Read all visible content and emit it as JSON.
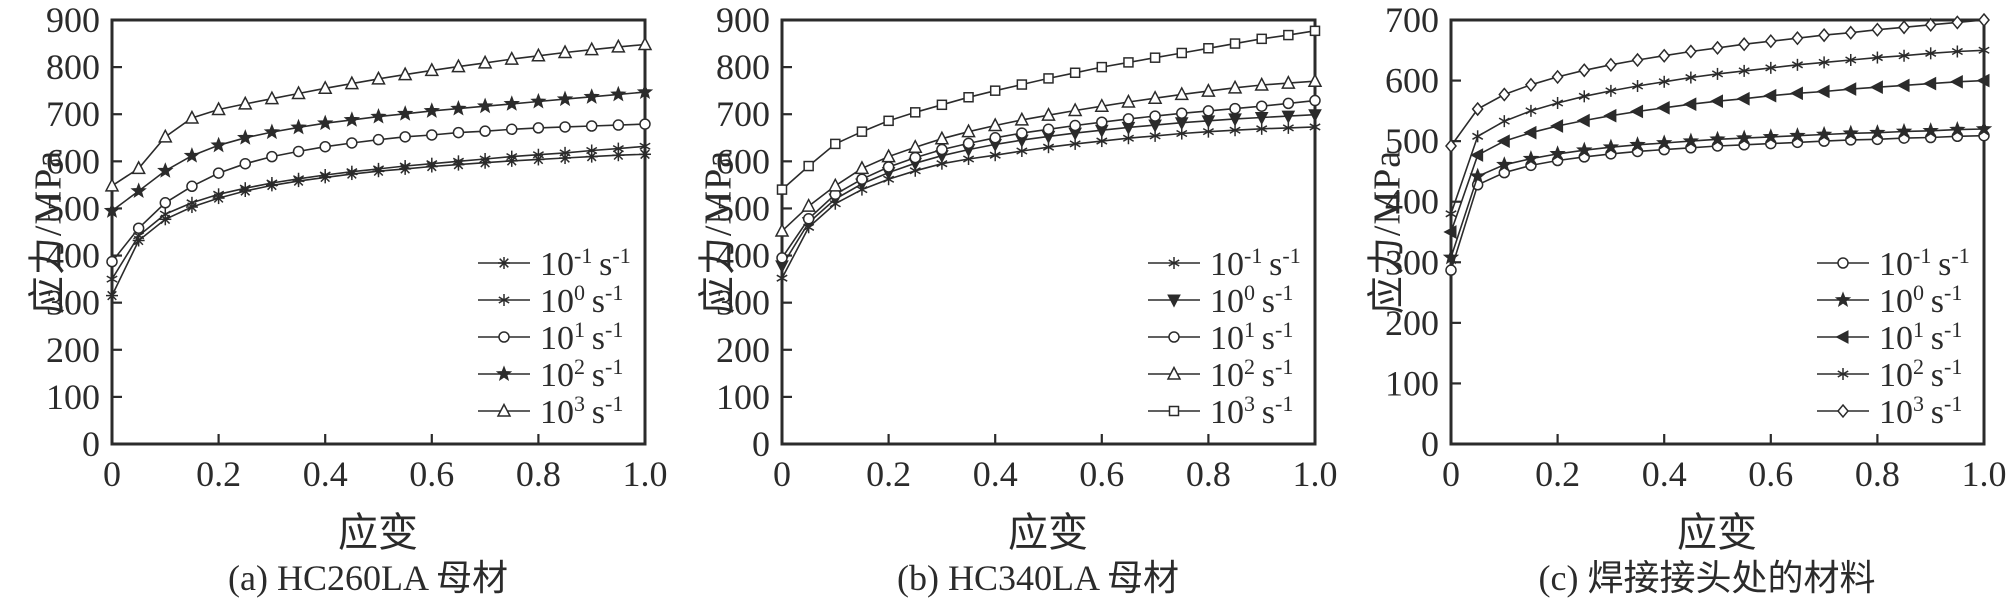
{
  "style": {
    "ink": "#2b2b2b",
    "background": "#ffffff",
    "marker_fill_open": "#ffffff"
  },
  "chart_data": [
    {
      "id": "a",
      "type": "line",
      "caption": "(a) HC260LA 母材",
      "xlabel": "应变",
      "ylabel": "应力/MPa",
      "xlim": [
        0,
        1.0
      ],
      "ylim": [
        0,
        900
      ],
      "ytick_step": 100,
      "ytick_labels": [
        "0",
        "100",
        "200",
        "300",
        "400",
        "500",
        "600",
        "700",
        "800",
        "900"
      ],
      "xticks": [
        0,
        0.2,
        0.4,
        0.6,
        0.8,
        1.0
      ],
      "xtick_labels": [
        "0",
        "0.2",
        "0.4",
        "0.6",
        "0.8",
        "1.0"
      ],
      "legend_position": "lower right",
      "grid": false,
      "x": [
        0,
        0.05,
        0.1,
        0.15,
        0.2,
        0.25,
        0.3,
        0.35,
        0.4,
        0.45,
        0.5,
        0.55,
        0.6,
        0.65,
        0.7,
        0.75,
        0.8,
        0.85,
        0.9,
        0.95,
        1.0
      ],
      "series": [
        {
          "label": "10^-1 s^-1",
          "exp": "-1",
          "marker": "asterisk8",
          "values": [
            315,
            432,
            477,
            503,
            522,
            537,
            549,
            558,
            566,
            573,
            579,
            584,
            589,
            593,
            597,
            601,
            604,
            607,
            610,
            613,
            615
          ]
        },
        {
          "label": "10^0 s^-1",
          "exp": "0",
          "marker": "asterisk6",
          "values": [
            350,
            442,
            488,
            512,
            530,
            543,
            554,
            563,
            571,
            578,
            584,
            590,
            595,
            600,
            605,
            610,
            614,
            618,
            623,
            627,
            632
          ]
        },
        {
          "label": "10^1 s^-1",
          "exp": "1",
          "marker": "circle",
          "values": [
            387,
            458,
            512,
            547,
            575,
            595,
            610,
            621,
            631,
            639,
            646,
            652,
            656,
            661,
            664,
            668,
            671,
            673,
            675,
            677,
            679
          ]
        },
        {
          "label": "10^2 s^-1",
          "exp": "2",
          "marker": "star",
          "values": [
            495,
            537,
            580,
            612,
            634,
            650,
            662,
            672,
            681,
            688,
            695,
            701,
            707,
            712,
            717,
            722,
            727,
            732,
            737,
            742,
            747
          ]
        },
        {
          "label": "10^3 s^-1",
          "exp": "3",
          "marker": "triangle-up",
          "values": [
            548,
            585,
            652,
            692,
            710,
            722,
            733,
            744,
            755,
            765,
            775,
            784,
            793,
            801,
            809,
            817,
            824,
            831,
            837,
            843,
            848
          ]
        }
      ]
    },
    {
      "id": "b",
      "type": "line",
      "caption": "(b) HC340LA 母材",
      "xlabel": "应变",
      "ylabel": "应力/MPa",
      "xlim": [
        0,
        1.0
      ],
      "ylim": [
        0,
        900
      ],
      "ytick_step": 100,
      "ytick_labels": [
        "0",
        "100",
        "200",
        "300",
        "400",
        "500",
        "600",
        "700",
        "800",
        "900"
      ],
      "xticks": [
        0,
        0.2,
        0.4,
        0.6,
        0.8,
        1.0
      ],
      "xtick_labels": [
        "0",
        "0.2",
        "0.4",
        "0.6",
        "0.8",
        "1.0"
      ],
      "legend_position": "lower right",
      "grid": false,
      "x": [
        0,
        0.05,
        0.1,
        0.15,
        0.2,
        0.25,
        0.3,
        0.35,
        0.4,
        0.45,
        0.5,
        0.55,
        0.6,
        0.65,
        0.7,
        0.75,
        0.8,
        0.85,
        0.9,
        0.95,
        1.0
      ],
      "series": [
        {
          "label": "10^-1 s^-1",
          "exp": "-1",
          "marker": "asterisk6",
          "values": [
            352,
            460,
            510,
            540,
            562,
            580,
            595,
            605,
            613,
            622,
            630,
            637,
            643,
            649,
            654,
            659,
            663,
            666,
            669,
            671,
            673
          ]
        },
        {
          "label": "10^0 s^-1",
          "exp": "0",
          "marker": "triangle-down-filled",
          "values": [
            378,
            470,
            520,
            552,
            576,
            596,
            612,
            625,
            636,
            645,
            653,
            660,
            666,
            672,
            677,
            682,
            686,
            690,
            693,
            696,
            699
          ]
        },
        {
          "label": "10^1 s^-1",
          "exp": "1",
          "marker": "circle",
          "values": [
            395,
            478,
            530,
            562,
            588,
            608,
            625,
            638,
            650,
            660,
            668,
            676,
            683,
            690,
            696,
            702,
            707,
            712,
            717,
            723,
            729
          ]
        },
        {
          "label": "10^2 s^-1",
          "exp": "2",
          "marker": "triangle-up",
          "values": [
            452,
            505,
            548,
            585,
            610,
            630,
            648,
            663,
            676,
            688,
            698,
            708,
            717,
            726,
            734,
            742,
            749,
            756,
            762,
            766,
            770
          ]
        },
        {
          "label": "10^3 s^-1",
          "exp": "3",
          "marker": "square",
          "values": [
            540,
            590,
            637,
            663,
            686,
            704,
            720,
            736,
            750,
            763,
            776,
            788,
            800,
            810,
            820,
            830,
            840,
            850,
            860,
            868,
            877
          ]
        }
      ]
    },
    {
      "id": "c",
      "type": "line",
      "caption": "(c) 焊接接头处的材料",
      "xlabel": "应变",
      "ylabel": "应力/MPa",
      "xlim": [
        0,
        1.0
      ],
      "ylim": [
        0,
        700
      ],
      "ytick_step": 100,
      "ytick_labels": [
        "0",
        "100",
        "200",
        "300",
        "400",
        "500",
        "600",
        "700"
      ],
      "xticks": [
        0,
        0.2,
        0.4,
        0.6,
        0.8,
        1.0
      ],
      "xtick_labels": [
        "0",
        "0.2",
        "0.4",
        "0.6",
        "0.8",
        "1.0"
      ],
      "legend_position": "lower right",
      "grid": false,
      "x": [
        0,
        0.05,
        0.1,
        0.15,
        0.2,
        0.25,
        0.3,
        0.35,
        0.4,
        0.45,
        0.5,
        0.55,
        0.6,
        0.65,
        0.7,
        0.75,
        0.8,
        0.85,
        0.9,
        0.95,
        1.0
      ],
      "series": [
        {
          "label": "10^-1 s^-1",
          "exp": "-1",
          "marker": "circle",
          "values": [
            287,
            428,
            448,
            460,
            468,
            474,
            479,
            483,
            486,
            489,
            492,
            494,
            496,
            498,
            500,
            502,
            503,
            505,
            506,
            508,
            509
          ]
        },
        {
          "label": "10^0 s^-1",
          "exp": "0",
          "marker": "star",
          "values": [
            308,
            442,
            461,
            471,
            479,
            485,
            490,
            494,
            497,
            500,
            503,
            505,
            507,
            509,
            511,
            513,
            514,
            516,
            517,
            519,
            520
          ]
        },
        {
          "label": "10^1 s^-1",
          "exp": "1",
          "marker": "triangle-left-filled",
          "values": [
            350,
            477,
            500,
            514,
            525,
            534,
            542,
            549,
            555,
            561,
            566,
            570,
            575,
            579,
            582,
            586,
            589,
            592,
            595,
            598,
            600
          ]
        },
        {
          "label": "10^2 s^-1",
          "exp": "2",
          "marker": "asterisk6",
          "values": [
            380,
            508,
            533,
            550,
            563,
            574,
            583,
            591,
            598,
            605,
            611,
            616,
            621,
            626,
            630,
            634,
            638,
            641,
            645,
            648,
            650
          ]
        },
        {
          "label": "10^3 s^-1",
          "exp": "3",
          "marker": "diamond",
          "values": [
            492,
            553,
            577,
            593,
            606,
            617,
            626,
            634,
            641,
            648,
            654,
            660,
            665,
            670,
            675,
            679,
            684,
            688,
            692,
            696,
            700
          ]
        }
      ]
    }
  ]
}
